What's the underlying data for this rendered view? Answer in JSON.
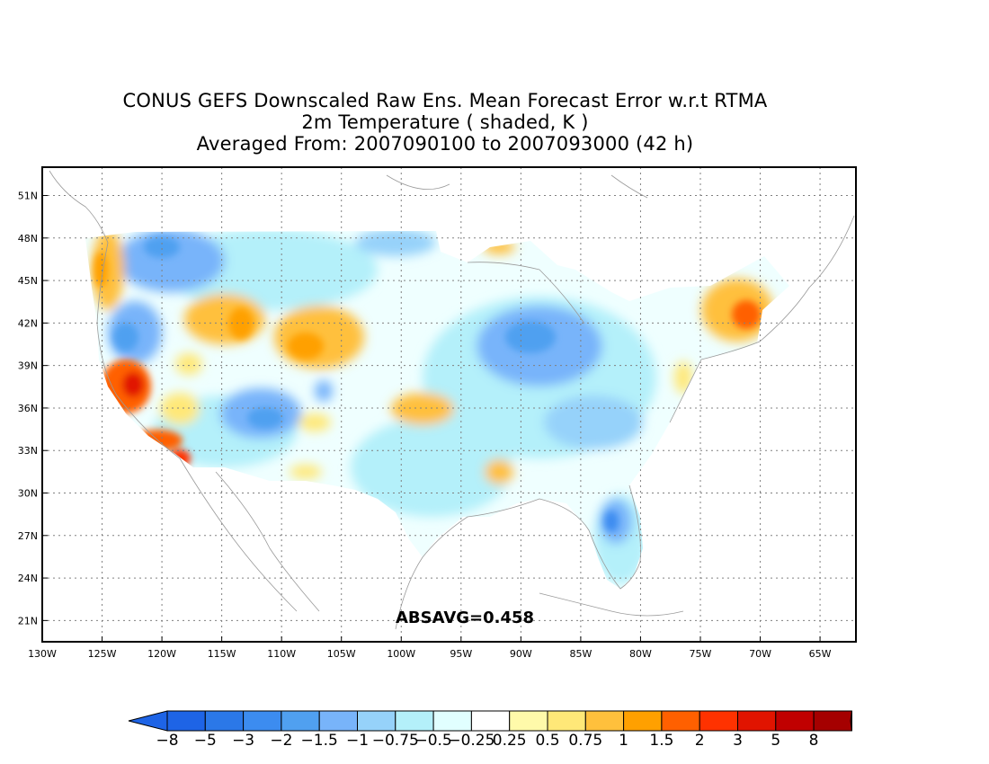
{
  "title": {
    "line1": "CONUS GEFS Downscaled Raw Ens. Mean Forecast Error w.r.t RTMA",
    "line2": "2m Temperature ( shaded, K )",
    "line3": "Averaged From: 2007090100 to 2007093000 (42 h)"
  },
  "annotation": "ABSAVG=0.458",
  "axes": {
    "lon_labels": [
      "130W",
      "125W",
      "120W",
      "115W",
      "110W",
      "105W",
      "100W",
      "95W",
      "90W",
      "85W",
      "80W",
      "75W",
      "70W",
      "65W"
    ],
    "lat_labels": [
      "51N",
      "48N",
      "45N",
      "42N",
      "39N",
      "36N",
      "33N",
      "30N",
      "27N",
      "24N",
      "21N"
    ]
  },
  "colorbar": {
    "labels": [
      "-8",
      "-5",
      "-3",
      "-2",
      "-1.5",
      "-1",
      "-0.75",
      "-0.5",
      "-0.25",
      "0.25",
      "0.5",
      "0.75",
      "1",
      "1.5",
      "2",
      "3",
      "5",
      "8"
    ],
    "colors": [
      "#1e64e6",
      "#2b78e8",
      "#3c8cf0",
      "#50a0f0",
      "#78b4fa",
      "#96d2fa",
      "#b4f0fa",
      "#e1ffff",
      "#ffffff",
      "#fffaaa",
      "#ffe878",
      "#ffc03c",
      "#ffa000",
      "#ff6000",
      "#ff3200",
      "#e11400",
      "#c00000",
      "#a50000"
    ]
  },
  "chart_data": {
    "type": "heatmap",
    "variable": "2m Temperature forecast error (K)",
    "lon_range": [
      -130,
      -62
    ],
    "lat_range": [
      19.5,
      53
    ],
    "grid": true,
    "absavg": 0.458,
    "regions": [
      {
        "lon": -122.5,
        "lat": 38.0,
        "value": 3.0
      },
      {
        "lon": -119.5,
        "lat": 34.0,
        "value": 2.0
      },
      {
        "lon": -117.0,
        "lat": 32.8,
        "value": 3.0
      },
      {
        "lon": -124.0,
        "lat": 46.0,
        "value": 1.0
      },
      {
        "lon": -113.0,
        "lat": 42.0,
        "value": 1.0
      },
      {
        "lon": -106.0,
        "lat": 40.5,
        "value": 1.0
      },
      {
        "lon": -97.0,
        "lat": 36.0,
        "value": 1.0
      },
      {
        "lon": -90.5,
        "lat": 31.8,
        "value": 1.0
      },
      {
        "lon": -70.0,
        "lat": 42.5,
        "value": 2.0
      },
      {
        "lon": -119.0,
        "lat": 47.0,
        "value": -1.5
      },
      {
        "lon": -111.0,
        "lat": 35.5,
        "value": -1.5
      },
      {
        "lon": -88.0,
        "lat": 41.0,
        "value": -1.0
      },
      {
        "lon": -84.0,
        "lat": 35.0,
        "value": -1.0
      },
      {
        "lon": -82.0,
        "lat": 28.0,
        "value": -1.5
      },
      {
        "lon": -100.0,
        "lat": 48.0,
        "value": -1.0
      }
    ]
  }
}
